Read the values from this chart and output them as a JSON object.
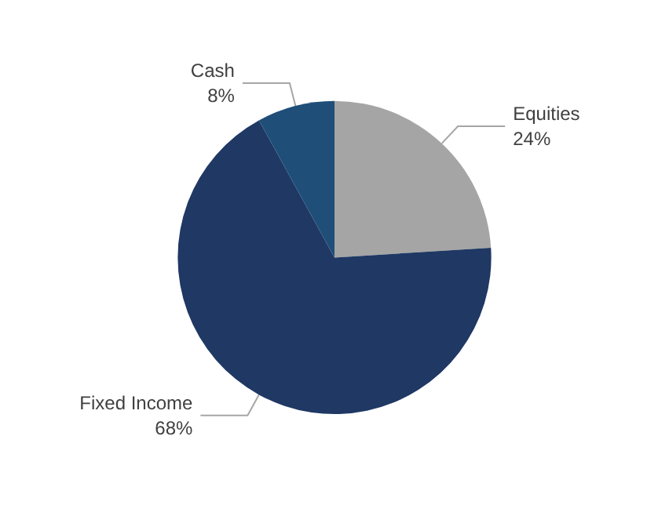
{
  "chart_data": {
    "type": "pie",
    "categories": [
      "Equities",
      "Fixed Income",
      "Cash"
    ],
    "values": [
      24,
      68,
      8
    ],
    "colors": [
      "#a5a5a5",
      "#1f3864",
      "#1f4e79"
    ],
    "value_labels": [
      "24%",
      "68%",
      "8%"
    ]
  }
}
